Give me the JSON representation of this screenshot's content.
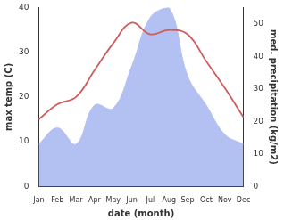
{
  "chart_data": {
    "type": "line",
    "x_label": "date (month)",
    "y_label": "max temp (C)",
    "y2_label": "med. precipitation (kg/m2)",
    "categories": [
      "Jan",
      "Feb",
      "Mar",
      "Apr",
      "May",
      "Jun",
      "Jul",
      "Aug",
      "Sep",
      "Oct",
      "Nov",
      "Dec"
    ],
    "series": [
      {
        "type": "area",
        "axis": "y2",
        "color": "#b3c0f2",
        "values": [
          13,
          18,
          13,
          25,
          24,
          37,
          52,
          55,
          34,
          25,
          16,
          13
        ]
      },
      {
        "type": "line",
        "axis": "y",
        "color": "#cd5c5c",
        "values": [
          15,
          18.4,
          20,
          26,
          32,
          36.6,
          34,
          35,
          34,
          28,
          22,
          15.5
        ]
      }
    ],
    "ylim": [
      0,
      40
    ],
    "yticks": [
      0,
      10,
      20,
      30,
      40
    ],
    "y2lim": [
      0,
      55
    ],
    "y2ticks": [
      0,
      10,
      20,
      30,
      40,
      50
    ],
    "grid": false
  }
}
